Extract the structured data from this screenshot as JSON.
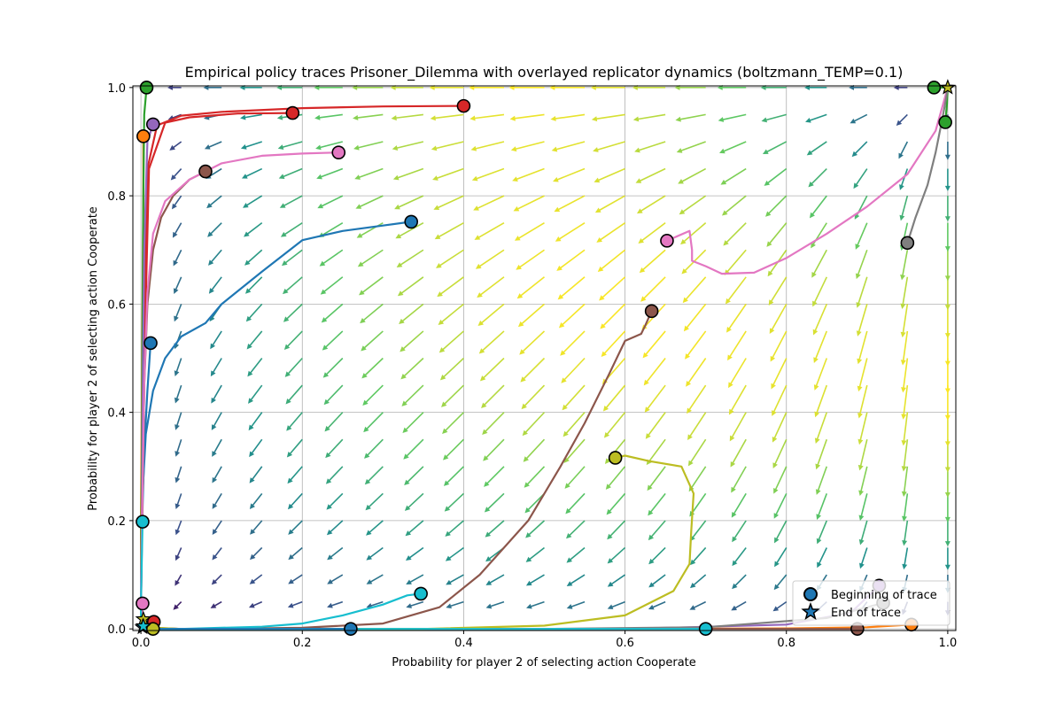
{
  "chart_data": {
    "type": "line",
    "title": "Empirical policy traces Prisoner_Dilemma with overlayed replicator dynamics (boltzmann_TEMP=0.1)",
    "xlabel": "Probability for player 2 of selecting action Cooperate",
    "ylabel": "Probability for player 2 of selecting action Cooperate",
    "xlim": [
      -0.01,
      1.01
    ],
    "ylim": [
      -0.003,
      1.003
    ],
    "xticks": [
      "0.0",
      "0.2",
      "0.4",
      "0.6",
      "0.8",
      "1.0"
    ],
    "yticks": [
      "0.0",
      "0.2",
      "0.4",
      "0.6",
      "0.8",
      "1.0"
    ],
    "grid": true,
    "legend": {
      "placement": "lower right",
      "entries": [
        {
          "label": "Beginning of trace",
          "marker": "circle"
        },
        {
          "label": "End of trace",
          "marker": "star"
        }
      ]
    },
    "series": [
      {
        "color": "#1f77b4",
        "points": [
          [
            0.335,
            0.752
          ],
          [
            0.3,
            0.745
          ],
          [
            0.25,
            0.735
          ],
          [
            0.2,
            0.718
          ],
          [
            0.15,
            0.66
          ],
          [
            0.1,
            0.6
          ],
          [
            0.08,
            0.565
          ],
          [
            0.05,
            0.54
          ],
          [
            0.03,
            0.5
          ],
          [
            0.015,
            0.44
          ],
          [
            0.006,
            0.36
          ],
          [
            0.002,
            0.25
          ],
          [
            0.0,
            0.15
          ],
          [
            0.0,
            0.05
          ],
          [
            0.0,
            0.01
          ]
        ]
      },
      {
        "color": "#1f77b4",
        "points": [
          [
            0.012,
            0.528
          ],
          [
            0.008,
            0.44
          ],
          [
            0.004,
            0.33
          ],
          [
            0.002,
            0.22
          ],
          [
            0.0,
            0.12
          ],
          [
            0.0,
            0.03
          ],
          [
            0.0,
            0.005
          ]
        ]
      },
      {
        "color": "#ff7f0e",
        "points": [
          [
            0.955,
            0.008
          ],
          [
            0.9,
            0.003
          ],
          [
            0.8,
            0.001
          ],
          [
            0.6,
            0.0
          ],
          [
            0.4,
            0.0
          ],
          [
            0.2,
            0.0
          ],
          [
            0.05,
            0.0
          ],
          [
            0.003,
            0.003
          ]
        ]
      },
      {
        "color": "#ff7f0e",
        "points": [
          [
            0.003,
            0.91
          ],
          [
            0.003,
            0.8
          ],
          [
            0.002,
            0.6
          ],
          [
            0.001,
            0.4
          ],
          [
            0.0,
            0.2
          ],
          [
            0.0,
            0.05
          ],
          [
            0.0,
            0.005
          ]
        ]
      },
      {
        "color": "#2ca02c",
        "points": [
          [
            0.007,
            1.0
          ],
          [
            0.004,
            0.95
          ],
          [
            0.003,
            0.8
          ],
          [
            0.002,
            0.55
          ],
          [
            0.001,
            0.3
          ],
          [
            0.0,
            0.1
          ],
          [
            0.0,
            0.01
          ]
        ]
      },
      {
        "color": "#2ca02c",
        "points": [
          [
            0.983,
            1.0
          ],
          [
            0.995,
            1.0
          ],
          [
            0.999,
            1.0
          ]
        ]
      },
      {
        "color": "#2ca02c",
        "points": [
          [
            0.997,
            0.936
          ],
          [
            0.999,
            0.97
          ],
          [
            1.0,
            1.0
          ]
        ]
      },
      {
        "color": "#d62728",
        "points": [
          [
            0.4,
            0.966
          ],
          [
            0.3,
            0.965
          ],
          [
            0.2,
            0.962
          ],
          [
            0.1,
            0.955
          ],
          [
            0.05,
            0.948
          ],
          [
            0.02,
            0.93
          ],
          [
            0.008,
            0.85
          ],
          [
            0.004,
            0.6
          ],
          [
            0.002,
            0.3
          ],
          [
            0.0,
            0.05
          ],
          [
            0.0,
            0.005
          ]
        ]
      },
      {
        "color": "#d62728",
        "points": [
          [
            0.188,
            0.953
          ],
          [
            0.12,
            0.952
          ],
          [
            0.06,
            0.945
          ],
          [
            0.03,
            0.935
          ],
          [
            0.01,
            0.85
          ],
          [
            0.005,
            0.55
          ],
          [
            0.002,
            0.25
          ],
          [
            0.0,
            0.03
          ]
        ]
      },
      {
        "color": "#d62728",
        "points": [
          [
            0.016,
            0.013
          ],
          [
            0.008,
            0.006
          ],
          [
            0.002,
            0.002
          ]
        ]
      },
      {
        "color": "#9467bd",
        "points": [
          [
            0.015,
            0.932
          ],
          [
            0.008,
            0.9
          ],
          [
            0.004,
            0.7
          ],
          [
            0.002,
            0.4
          ],
          [
            0.001,
            0.15
          ],
          [
            0.0,
            0.02
          ]
        ]
      },
      {
        "color": "#9467bd",
        "points": [
          [
            0.915,
            0.08
          ],
          [
            0.88,
            0.03
          ],
          [
            0.8,
            0.008
          ],
          [
            0.6,
            0.0
          ],
          [
            0.3,
            0.0
          ],
          [
            0.05,
            0.0
          ],
          [
            0.002,
            0.002
          ]
        ]
      },
      {
        "color": "#8c564b",
        "points": [
          [
            0.08,
            0.845
          ],
          [
            0.06,
            0.83
          ],
          [
            0.04,
            0.8
          ],
          [
            0.025,
            0.76
          ],
          [
            0.015,
            0.7
          ],
          [
            0.008,
            0.6
          ],
          [
            0.004,
            0.45
          ],
          [
            0.002,
            0.25
          ],
          [
            0.0,
            0.08
          ],
          [
            0.0,
            0.01
          ]
        ]
      },
      {
        "color": "#8c564b",
        "points": [
          [
            0.633,
            0.587
          ],
          [
            0.625,
            0.56
          ],
          [
            0.62,
            0.545
          ],
          [
            0.6,
            0.532
          ],
          [
            0.58,
            0.47
          ],
          [
            0.55,
            0.38
          ],
          [
            0.52,
            0.3
          ],
          [
            0.48,
            0.2
          ],
          [
            0.42,
            0.1
          ],
          [
            0.37,
            0.04
          ],
          [
            0.3,
            0.01
          ],
          [
            0.2,
            0.002
          ],
          [
            0.1,
            0.0
          ],
          [
            0.02,
            0.0
          ],
          [
            0.003,
            0.002
          ]
        ]
      },
      {
        "color": "#8c564b",
        "points": [
          [
            0.888,
            0.0
          ],
          [
            0.8,
            0.0
          ],
          [
            0.6,
            0.0
          ],
          [
            0.3,
            0.0
          ],
          [
            0.05,
            0.0
          ],
          [
            0.003,
            0.0
          ]
        ]
      },
      {
        "color": "#e377c2",
        "points": [
          [
            0.245,
            0.88
          ],
          [
            0.2,
            0.878
          ],
          [
            0.15,
            0.874
          ],
          [
            0.1,
            0.86
          ],
          [
            0.06,
            0.83
          ],
          [
            0.03,
            0.79
          ],
          [
            0.015,
            0.73
          ],
          [
            0.008,
            0.62
          ],
          [
            0.004,
            0.45
          ],
          [
            0.002,
            0.25
          ],
          [
            0.0,
            0.08
          ],
          [
            0.0,
            0.01
          ]
        ]
      },
      {
        "color": "#e377c2",
        "points": [
          [
            0.652,
            0.717
          ],
          [
            0.68,
            0.735
          ],
          [
            0.683,
            0.7
          ],
          [
            0.683,
            0.68
          ],
          [
            0.7,
            0.67
          ],
          [
            0.72,
            0.656
          ],
          [
            0.76,
            0.658
          ],
          [
            0.8,
            0.685
          ],
          [
            0.85,
            0.73
          ],
          [
            0.9,
            0.78
          ],
          [
            0.95,
            0.84
          ],
          [
            0.985,
            0.92
          ],
          [
            1.0,
            1.0
          ]
        ]
      },
      {
        "color": "#e377c2",
        "points": [
          [
            0.002,
            0.047
          ],
          [
            0.001,
            0.025
          ],
          [
            0.0,
            0.005
          ]
        ]
      },
      {
        "color": "#7f7f7f",
        "points": [
          [
            0.95,
            0.713
          ],
          [
            0.96,
            0.76
          ],
          [
            0.975,
            0.82
          ],
          [
            0.985,
            0.88
          ],
          [
            0.993,
            0.94
          ],
          [
            0.998,
            0.98
          ],
          [
            1.0,
            1.0
          ]
        ]
      },
      {
        "color": "#7f7f7f",
        "points": [
          [
            0.92,
            0.048
          ],
          [
            0.85,
            0.02
          ],
          [
            0.7,
            0.003
          ],
          [
            0.5,
            0.0
          ],
          [
            0.25,
            0.0
          ],
          [
            0.05,
            0.0
          ],
          [
            0.003,
            0.002
          ]
        ]
      },
      {
        "color": "#bcbd22",
        "points": [
          [
            0.588,
            0.316
          ],
          [
            0.6,
            0.32
          ],
          [
            0.63,
            0.31
          ],
          [
            0.67,
            0.3
          ],
          [
            0.685,
            0.25
          ],
          [
            0.682,
            0.18
          ],
          [
            0.68,
            0.12
          ],
          [
            0.66,
            0.07
          ],
          [
            0.6,
            0.025
          ],
          [
            0.5,
            0.006
          ],
          [
            0.35,
            0.0
          ],
          [
            0.2,
            0.0
          ],
          [
            0.05,
            0.0
          ],
          [
            0.003,
            0.003
          ]
        ]
      },
      {
        "color": "#bcbd22",
        "points": [
          [
            0.015,
            0.0
          ],
          [
            0.007,
            0.0
          ],
          [
            0.002,
            0.001
          ]
        ]
      },
      {
        "color": "#17becf",
        "points": [
          [
            0.347,
            0.065
          ],
          [
            0.33,
            0.062
          ],
          [
            0.3,
            0.045
          ],
          [
            0.25,
            0.025
          ],
          [
            0.2,
            0.01
          ],
          [
            0.15,
            0.004
          ],
          [
            0.1,
            0.002
          ],
          [
            0.05,
            0.0
          ],
          [
            0.01,
            0.0
          ],
          [
            0.002,
            0.002
          ]
        ]
      },
      {
        "color": "#17becf",
        "points": [
          [
            0.7,
            0.0
          ],
          [
            0.5,
            0.0
          ],
          [
            0.3,
            0.0
          ],
          [
            0.1,
            0.0
          ],
          [
            0.003,
            0.0
          ]
        ]
      },
      {
        "color": "#17becf",
        "points": [
          [
            0.002,
            0.198
          ],
          [
            0.001,
            0.12
          ],
          [
            0.0,
            0.05
          ],
          [
            0.0,
            0.005
          ]
        ]
      },
      {
        "color": "#1f77b4",
        "points": [
          [
            0.26,
            0.0
          ],
          [
            0.15,
            0.0
          ],
          [
            0.05,
            0.0
          ],
          [
            0.003,
            0.0
          ]
        ]
      }
    ],
    "start_markers": [
      {
        "x": 0.335,
        "y": 0.752,
        "color": "#1f77b4"
      },
      {
        "x": 0.012,
        "y": 0.528,
        "color": "#1f77b4"
      },
      {
        "x": 0.26,
        "y": 0.0,
        "color": "#1f77b4"
      },
      {
        "x": 0.955,
        "y": 0.008,
        "color": "#ff7f0e"
      },
      {
        "x": 0.003,
        "y": 0.91,
        "color": "#ff7f0e"
      },
      {
        "x": 0.007,
        "y": 1.0,
        "color": "#2ca02c"
      },
      {
        "x": 0.983,
        "y": 1.0,
        "color": "#2ca02c"
      },
      {
        "x": 0.997,
        "y": 0.936,
        "color": "#2ca02c"
      },
      {
        "x": 0.4,
        "y": 0.966,
        "color": "#d62728"
      },
      {
        "x": 0.188,
        "y": 0.953,
        "color": "#d62728"
      },
      {
        "x": 0.016,
        "y": 0.013,
        "color": "#d62728"
      },
      {
        "x": 0.015,
        "y": 0.932,
        "color": "#9467bd"
      },
      {
        "x": 0.915,
        "y": 0.08,
        "color": "#9467bd"
      },
      {
        "x": 0.08,
        "y": 0.845,
        "color": "#8c564b"
      },
      {
        "x": 0.633,
        "y": 0.587,
        "color": "#8c564b"
      },
      {
        "x": 0.888,
        "y": 0.0,
        "color": "#8c564b"
      },
      {
        "x": 0.245,
        "y": 0.88,
        "color": "#e377c2"
      },
      {
        "x": 0.652,
        "y": 0.717,
        "color": "#e377c2"
      },
      {
        "x": 0.002,
        "y": 0.047,
        "color": "#e377c2"
      },
      {
        "x": 0.95,
        "y": 0.713,
        "color": "#7f7f7f"
      },
      {
        "x": 0.92,
        "y": 0.048,
        "color": "#7f7f7f"
      },
      {
        "x": 0.588,
        "y": 0.316,
        "color": "#bcbd22"
      },
      {
        "x": 0.015,
        "y": 0.0,
        "color": "#bcbd22"
      },
      {
        "x": 0.347,
        "y": 0.065,
        "color": "#17becf"
      },
      {
        "x": 0.7,
        "y": 0.0,
        "color": "#17becf"
      },
      {
        "x": 0.002,
        "y": 0.198,
        "color": "#17becf"
      }
    ],
    "end_markers": [
      {
        "x": 1.0,
        "y": 1.0,
        "color": "#bcbd22"
      },
      {
        "x": 0.003,
        "y": 0.018,
        "color": "#bcbd22"
      },
      {
        "x": 0.002,
        "y": 0.003,
        "color": "#1f77b4"
      },
      {
        "x": 0.003,
        "y": 0.005,
        "color": "#17becf"
      }
    ]
  }
}
